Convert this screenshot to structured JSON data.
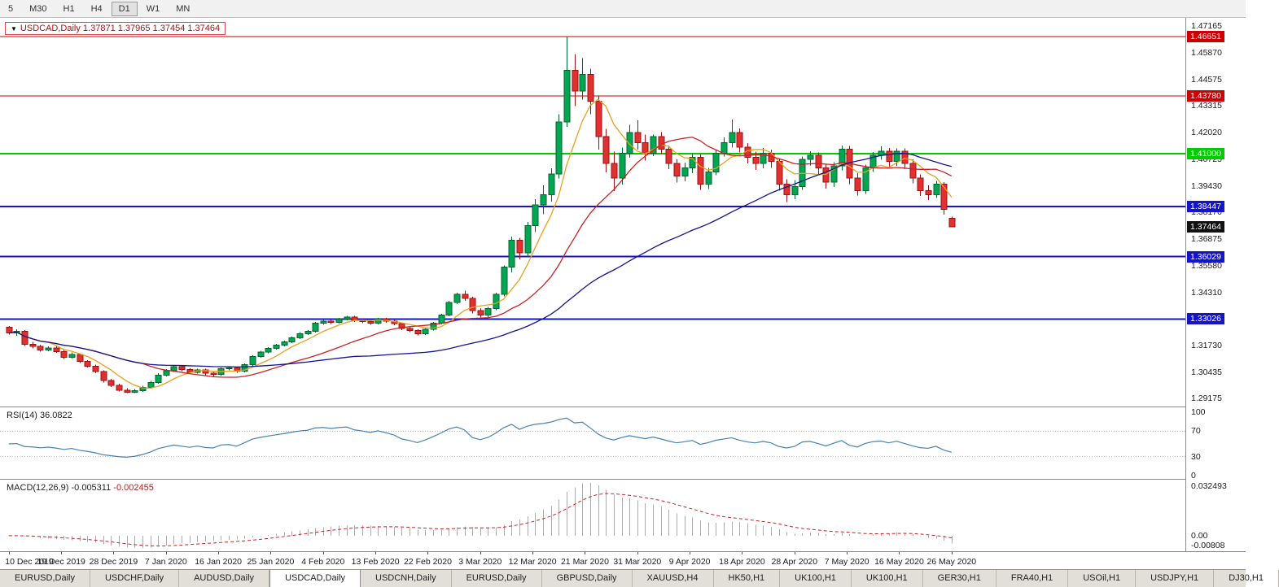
{
  "toolbar": {
    "timeframes": [
      {
        "label": "5",
        "active": false
      },
      {
        "label": "M30",
        "active": false
      },
      {
        "label": "H1",
        "active": false
      },
      {
        "label": "H4",
        "active": false
      },
      {
        "label": "D1",
        "active": true
      },
      {
        "label": "W1",
        "active": false
      },
      {
        "label": "MN",
        "active": false
      }
    ]
  },
  "info_box": {
    "arrow": "▼",
    "text": "USDCAD,Daily 1.37871 1.37965 1.37454 1.37464"
  },
  "rsi": {
    "label": "RSI(14)",
    "value": "36.0822",
    "color": "#4682b4",
    "ticks": [
      "100",
      "70",
      "30",
      "0"
    ],
    "levels": [
      70,
      30
    ]
  },
  "macd": {
    "label": "MACD(12,26,9)",
    "value_main": "-0.005311",
    "value_signal": "-0.002455",
    "ticks": {
      "top": "0.032493",
      "zero": "0.00",
      "bottom": "-0.00808"
    },
    "histogram_color": "#ababab",
    "signal_color": "#cc2020"
  },
  "tabs": [
    {
      "label": "EURUSD,Daily",
      "active": false
    },
    {
      "label": "USDCHF,Daily",
      "active": false
    },
    {
      "label": "AUDUSD,Daily",
      "active": false
    },
    {
      "label": "USDCAD,Daily",
      "active": true
    },
    {
      "label": "USDCNH,Daily",
      "active": false
    },
    {
      "label": "EURUSD,Daily",
      "active": false
    },
    {
      "label": "GBPUSD,Daily",
      "active": false
    },
    {
      "label": "XAUUSD,H4",
      "active": false
    },
    {
      "label": "HK50,H1",
      "active": false
    },
    {
      "label": "UK100,H1",
      "active": false
    },
    {
      "label": "UK100,H1",
      "active": false
    },
    {
      "label": "GER30,H1",
      "active": false
    },
    {
      "label": "FRA40,H1",
      "active": false
    },
    {
      "label": "USOil,H1",
      "active": false
    },
    {
      "label": "USDJPY,H1",
      "active": false
    },
    {
      "label": "DJ30,H1",
      "active": false
    }
  ],
  "chart_data": {
    "type": "candlestick",
    "symbol": "USDCAD",
    "timeframe": "Daily",
    "ohlc_display": {
      "open": "1.37871",
      "high": "1.37965",
      "low": "1.37454",
      "close": "1.37464"
    },
    "y_range": {
      "min": 1.288,
      "max": 1.4755
    },
    "axis_ticks": [
      "1.47165",
      "1.45870",
      "1.44575",
      "1.43315",
      "1.42020",
      "1.40725",
      "1.39430",
      "1.38170",
      "1.36875",
      "1.35580",
      "1.34310",
      "1.31730",
      "1.30435",
      "1.29175"
    ],
    "hlines": [
      {
        "price": 1.46651,
        "label": "1.46651",
        "color": "#cc0000",
        "width": 1
      },
      {
        "price": 1.4378,
        "label": "1.43780",
        "color": "#cc0000",
        "width": 1
      },
      {
        "price": 1.41,
        "label": "1.41000",
        "color": "#00cc00",
        "width": 2
      },
      {
        "price": 1.38447,
        "label": "1.38447",
        "color": "#1414cc",
        "width": 2
      },
      {
        "price": 1.36029,
        "label": "1.36029",
        "color": "#1414cc",
        "width": 2
      },
      {
        "price": 1.33026,
        "label": "1.33026",
        "color": "#1414cc",
        "width": 2
      }
    ],
    "current_price": {
      "price": 1.37464,
      "label": "1.37464",
      "bg": "#111111"
    },
    "moving_averages": [
      {
        "period": 6,
        "color": "#e8a020"
      },
      {
        "period": 18,
        "color": "#cc2020"
      },
      {
        "period": 45,
        "color": "#14148c"
      }
    ],
    "colors": {
      "bull": "#00a651",
      "bull_border": "#00662e",
      "bear": "#e03030",
      "bear_border": "#9c1212"
    },
    "x_labels": [
      "10 Dec 2019",
      "19 Dec 2019",
      "28 Dec 2019",
      "7 Jan 2020",
      "16 Jan 2020",
      "25 Jan 2020",
      "4 Feb 2020",
      "13 Feb 2020",
      "22 Feb 2020",
      "3 Mar 2020",
      "12 Mar 2020",
      "21 Mar 2020",
      "31 Mar 2020",
      "9 Apr 2020",
      "18 Apr 2020",
      "28 Apr 2020",
      "7 May 2020",
      "16 May 2020",
      "26 May 2020"
    ],
    "candles": [
      [
        1.3262,
        1.3268,
        1.3228,
        1.3235
      ],
      [
        1.3235,
        1.3252,
        1.3222,
        1.3242
      ],
      [
        1.3242,
        1.3248,
        1.3172,
        1.318
      ],
      [
        1.318,
        1.3192,
        1.316,
        1.317
      ],
      [
        1.317,
        1.3178,
        1.3144,
        1.3152
      ],
      [
        1.3152,
        1.317,
        1.3146,
        1.3163
      ],
      [
        1.3163,
        1.317,
        1.3138,
        1.3145
      ],
      [
        1.3145,
        1.3152,
        1.311,
        1.3118
      ],
      [
        1.3118,
        1.314,
        1.3112,
        1.3132
      ],
      [
        1.3132,
        1.3136,
        1.309,
        1.3098
      ],
      [
        1.3098,
        1.3104,
        1.3068,
        1.3075
      ],
      [
        1.3075,
        1.3082,
        1.304,
        1.3048
      ],
      [
        1.3048,
        1.3054,
        1.2996,
        1.3005
      ],
      [
        1.3005,
        1.3014,
        1.2974,
        1.2982
      ],
      [
        1.2982,
        1.299,
        1.2952,
        1.2958
      ],
      [
        1.2958,
        1.2968,
        1.2945,
        1.2948
      ],
      [
        1.2948,
        1.2964,
        1.2944,
        1.2956
      ],
      [
        1.2956,
        1.298,
        1.295,
        1.2972
      ],
      [
        1.2972,
        1.3004,
        1.2966,
        1.2996
      ],
      [
        1.2996,
        1.304,
        1.299,
        1.3032
      ],
      [
        1.3032,
        1.306,
        1.3026,
        1.3052
      ],
      [
        1.3052,
        1.308,
        1.3046,
        1.3072
      ],
      [
        1.3072,
        1.3078,
        1.305,
        1.3058
      ],
      [
        1.3058,
        1.3064,
        1.3036,
        1.3044
      ],
      [
        1.3044,
        1.3062,
        1.3038,
        1.3056
      ],
      [
        1.3056,
        1.3062,
        1.3032,
        1.304
      ],
      [
        1.304,
        1.3046,
        1.3026,
        1.3034
      ],
      [
        1.3034,
        1.3068,
        1.3028,
        1.3062
      ],
      [
        1.3062,
        1.3074,
        1.3054,
        1.3066
      ],
      [
        1.3066,
        1.3072,
        1.3042,
        1.305
      ],
      [
        1.305,
        1.3088,
        1.3044,
        1.3082
      ],
      [
        1.3082,
        1.3128,
        1.3076,
        1.3122
      ],
      [
        1.3122,
        1.3148,
        1.3116,
        1.3142
      ],
      [
        1.3142,
        1.3166,
        1.3136,
        1.316
      ],
      [
        1.316,
        1.3182,
        1.3154,
        1.3176
      ],
      [
        1.3176,
        1.3198,
        1.317,
        1.3192
      ],
      [
        1.3192,
        1.3218,
        1.3186,
        1.3212
      ],
      [
        1.3212,
        1.3238,
        1.3206,
        1.3232
      ],
      [
        1.3232,
        1.3248,
        1.3226,
        1.3242
      ],
      [
        1.3242,
        1.3288,
        1.3236,
        1.3282
      ],
      [
        1.3282,
        1.3298,
        1.3274,
        1.3292
      ],
      [
        1.3292,
        1.3298,
        1.3278,
        1.3286
      ],
      [
        1.3286,
        1.3308,
        1.328,
        1.3302
      ],
      [
        1.3302,
        1.3318,
        1.3296,
        1.3312
      ],
      [
        1.3312,
        1.3318,
        1.3288,
        1.3296
      ],
      [
        1.3296,
        1.3302,
        1.3282,
        1.329
      ],
      [
        1.329,
        1.3296,
        1.3274,
        1.3282
      ],
      [
        1.3282,
        1.3308,
        1.3276,
        1.3302
      ],
      [
        1.3302,
        1.3308,
        1.3284,
        1.3292
      ],
      [
        1.3292,
        1.3298,
        1.3272,
        1.328
      ],
      [
        1.328,
        1.3286,
        1.3248,
        1.3256
      ],
      [
        1.3256,
        1.3262,
        1.3238,
        1.3246
      ],
      [
        1.3246,
        1.3252,
        1.3224,
        1.3232
      ],
      [
        1.3232,
        1.3258,
        1.3226,
        1.3252
      ],
      [
        1.3252,
        1.3288,
        1.3246,
        1.3282
      ],
      [
        1.3282,
        1.3328,
        1.3276,
        1.3322
      ],
      [
        1.3322,
        1.339,
        1.3316,
        1.3382
      ],
      [
        1.3382,
        1.343,
        1.3374,
        1.3422
      ],
      [
        1.3422,
        1.3438,
        1.339,
        1.3402
      ],
      [
        1.3402,
        1.341,
        1.333,
        1.3342
      ],
      [
        1.3342,
        1.3354,
        1.331,
        1.3322
      ],
      [
        1.3322,
        1.336,
        1.3312,
        1.3352
      ],
      [
        1.3352,
        1.343,
        1.3344,
        1.3422
      ],
      [
        1.3422,
        1.356,
        1.3412,
        1.3552
      ],
      [
        1.3552,
        1.37,
        1.3528,
        1.3682
      ],
      [
        1.3682,
        1.3694,
        1.359,
        1.3622
      ],
      [
        1.3622,
        1.377,
        1.3602,
        1.3752
      ],
      [
        1.3752,
        1.388,
        1.3722,
        1.3852
      ],
      [
        1.3852,
        1.3946,
        1.3808,
        1.3902
      ],
      [
        1.3902,
        1.403,
        1.3868,
        1.4002
      ],
      [
        1.4002,
        1.429,
        1.398,
        1.4252
      ],
      [
        1.4252,
        1.4665,
        1.423,
        1.4502
      ],
      [
        1.4502,
        1.458,
        1.433,
        1.4402
      ],
      [
        1.4402,
        1.456,
        1.436,
        1.4482
      ],
      [
        1.4482,
        1.451,
        1.429,
        1.4352
      ],
      [
        1.4352,
        1.438,
        1.412,
        1.4182
      ],
      [
        1.4182,
        1.422,
        1.401,
        1.4052
      ],
      [
        1.4052,
        1.411,
        1.392,
        1.3982
      ],
      [
        1.3982,
        1.413,
        1.395,
        1.4102
      ],
      [
        1.4102,
        1.424,
        1.408,
        1.4202
      ],
      [
        1.4202,
        1.426,
        1.412,
        1.4152
      ],
      [
        1.4152,
        1.4192,
        1.4066,
        1.4102
      ],
      [
        1.4102,
        1.4192,
        1.4088,
        1.4182
      ],
      [
        1.4182,
        1.4204,
        1.41,
        1.4122
      ],
      [
        1.4122,
        1.414,
        1.4026,
        1.4052
      ],
      [
        1.4052,
        1.4072,
        1.396,
        1.3992
      ],
      [
        1.3992,
        1.4056,
        1.3966,
        1.4032
      ],
      [
        1.4032,
        1.4102,
        1.4006,
        1.4082
      ],
      [
        1.4082,
        1.4098,
        1.3926,
        1.3952
      ],
      [
        1.3952,
        1.4032,
        1.393,
        1.4012
      ],
      [
        1.4012,
        1.412,
        1.3996,
        1.4102
      ],
      [
        1.4102,
        1.4178,
        1.4086,
        1.4152
      ],
      [
        1.4152,
        1.4265,
        1.413,
        1.4202
      ],
      [
        1.4202,
        1.4222,
        1.4106,
        1.4132
      ],
      [
        1.4132,
        1.415,
        1.4052,
        1.4082
      ],
      [
        1.4082,
        1.411,
        1.4022,
        1.4052
      ],
      [
        1.4052,
        1.4128,
        1.403,
        1.4102
      ],
      [
        1.4102,
        1.412,
        1.4032,
        1.4062
      ],
      [
        1.4062,
        1.4076,
        1.3922,
        1.3952
      ],
      [
        1.3952,
        1.3976,
        1.3866,
        1.3902
      ],
      [
        1.3902,
        1.3972,
        1.388,
        1.3942
      ],
      [
        1.3942,
        1.4086,
        1.3926,
        1.4072
      ],
      [
        1.4072,
        1.4112,
        1.4044,
        1.4092
      ],
      [
        1.4092,
        1.4106,
        1.4002,
        1.4032
      ],
      [
        1.4032,
        1.405,
        1.3932,
        1.3962
      ],
      [
        1.3962,
        1.4058,
        1.394,
        1.4042
      ],
      [
        1.4042,
        1.414,
        1.402,
        1.4122
      ],
      [
        1.4122,
        1.4138,
        1.3952,
        1.3982
      ],
      [
        1.3982,
        1.4006,
        1.3898,
        1.3922
      ],
      [
        1.3922,
        1.4046,
        1.3906,
        1.4032
      ],
      [
        1.4032,
        1.4108,
        1.4012,
        1.4092
      ],
      [
        1.4092,
        1.4136,
        1.407,
        1.4112
      ],
      [
        1.4112,
        1.4128,
        1.4036,
        1.4062
      ],
      [
        1.4062,
        1.4126,
        1.4042,
        1.4112
      ],
      [
        1.4112,
        1.4126,
        1.4026,
        1.4052
      ],
      [
        1.4052,
        1.4072,
        1.3956,
        1.3982
      ],
      [
        1.3982,
        1.4,
        1.3896,
        1.3922
      ],
      [
        1.3922,
        1.3946,
        1.3876,
        1.3902
      ],
      [
        1.3902,
        1.3968,
        1.3886,
        1.3952
      ],
      [
        1.3952,
        1.3962,
        1.3806,
        1.3832
      ],
      [
        1.37871,
        1.37965,
        1.37454,
        1.37464
      ]
    ]
  }
}
